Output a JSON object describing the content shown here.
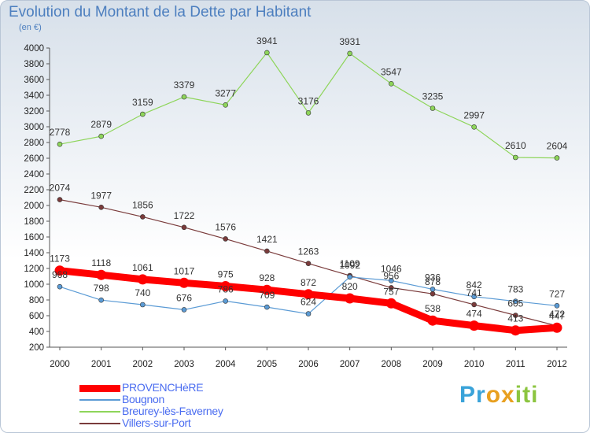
{
  "chart_data": {
    "type": "line",
    "title": "Evolution du Montant de la Dette par Habitant",
    "subtitle": "(en €)",
    "x": [
      "2000",
      "2001",
      "2002",
      "2003",
      "2004",
      "2005",
      "2006",
      "2007",
      "2008",
      "2009",
      "2010",
      "2011",
      "2012"
    ],
    "ylim": [
      200,
      4000
    ],
    "yticks": [
      200,
      400,
      600,
      800,
      1000,
      1200,
      1400,
      1600,
      1800,
      2000,
      2200,
      2400,
      2600,
      2800,
      3000,
      3200,
      3400,
      3600,
      3800,
      4000
    ],
    "grid": false,
    "legend_position": "bottom-left",
    "series": [
      {
        "name": "PROVENCHèRE",
        "color": "#ff0000",
        "values": [
          1173,
          1118,
          1061,
          1017,
          975,
          928,
          872,
          820,
          757,
          538,
          474,
          413,
          447
        ],
        "labels": [
          "1173",
          "1118",
          "1061",
          "1017",
          "975",
          "928",
          "872",
          "820",
          "757",
          "538",
          "474",
          "413",
          "447"
        ]
      },
      {
        "name": "Bougnon",
        "color": "#5b9bd5",
        "values": [
          968,
          798,
          740,
          676,
          786,
          709,
          624,
          1092,
          1046,
          936,
          842,
          783,
          727
        ],
        "labels": [
          "968",
          "798",
          "740",
          "676",
          "786",
          "709",
          "624",
          "1092",
          "1046",
          "936",
          "842",
          "783",
          "727"
        ]
      },
      {
        "name": "Breurey-lès-Faverney",
        "color": "#8ed55a",
        "values": [
          2778,
          2879,
          3159,
          3379,
          3277,
          3941,
          3176,
          3931,
          3547,
          3235,
          2997,
          2610,
          2604
        ],
        "labels": [
          "2778",
          "2879",
          "3159",
          "3379",
          "3277",
          "3941",
          "3176",
          "3931",
          "3547",
          "3235",
          "2997",
          "2610",
          "2604"
        ]
      },
      {
        "name": "Villers-sur-Port",
        "color": "#7a3b3b",
        "values": [
          2074,
          1977,
          1856,
          1722,
          1576,
          1421,
          1263,
          1109,
          956,
          878,
          741,
          605,
          472
        ],
        "labels": [
          "2074",
          "1977",
          "1856",
          "1722",
          "1576",
          "1421",
          "1263",
          "1109",
          "956",
          "878",
          "741",
          "605",
          "472"
        ]
      }
    ]
  },
  "brand": {
    "letters": [
      "P",
      "r",
      "o",
      "x",
      "i",
      "t",
      "i"
    ],
    "colors": [
      "#3aa3d9",
      "#3aa3d9",
      "#e8a020",
      "#e8a020",
      "#8cc540",
      "#8cc540",
      "#8cc540"
    ]
  }
}
